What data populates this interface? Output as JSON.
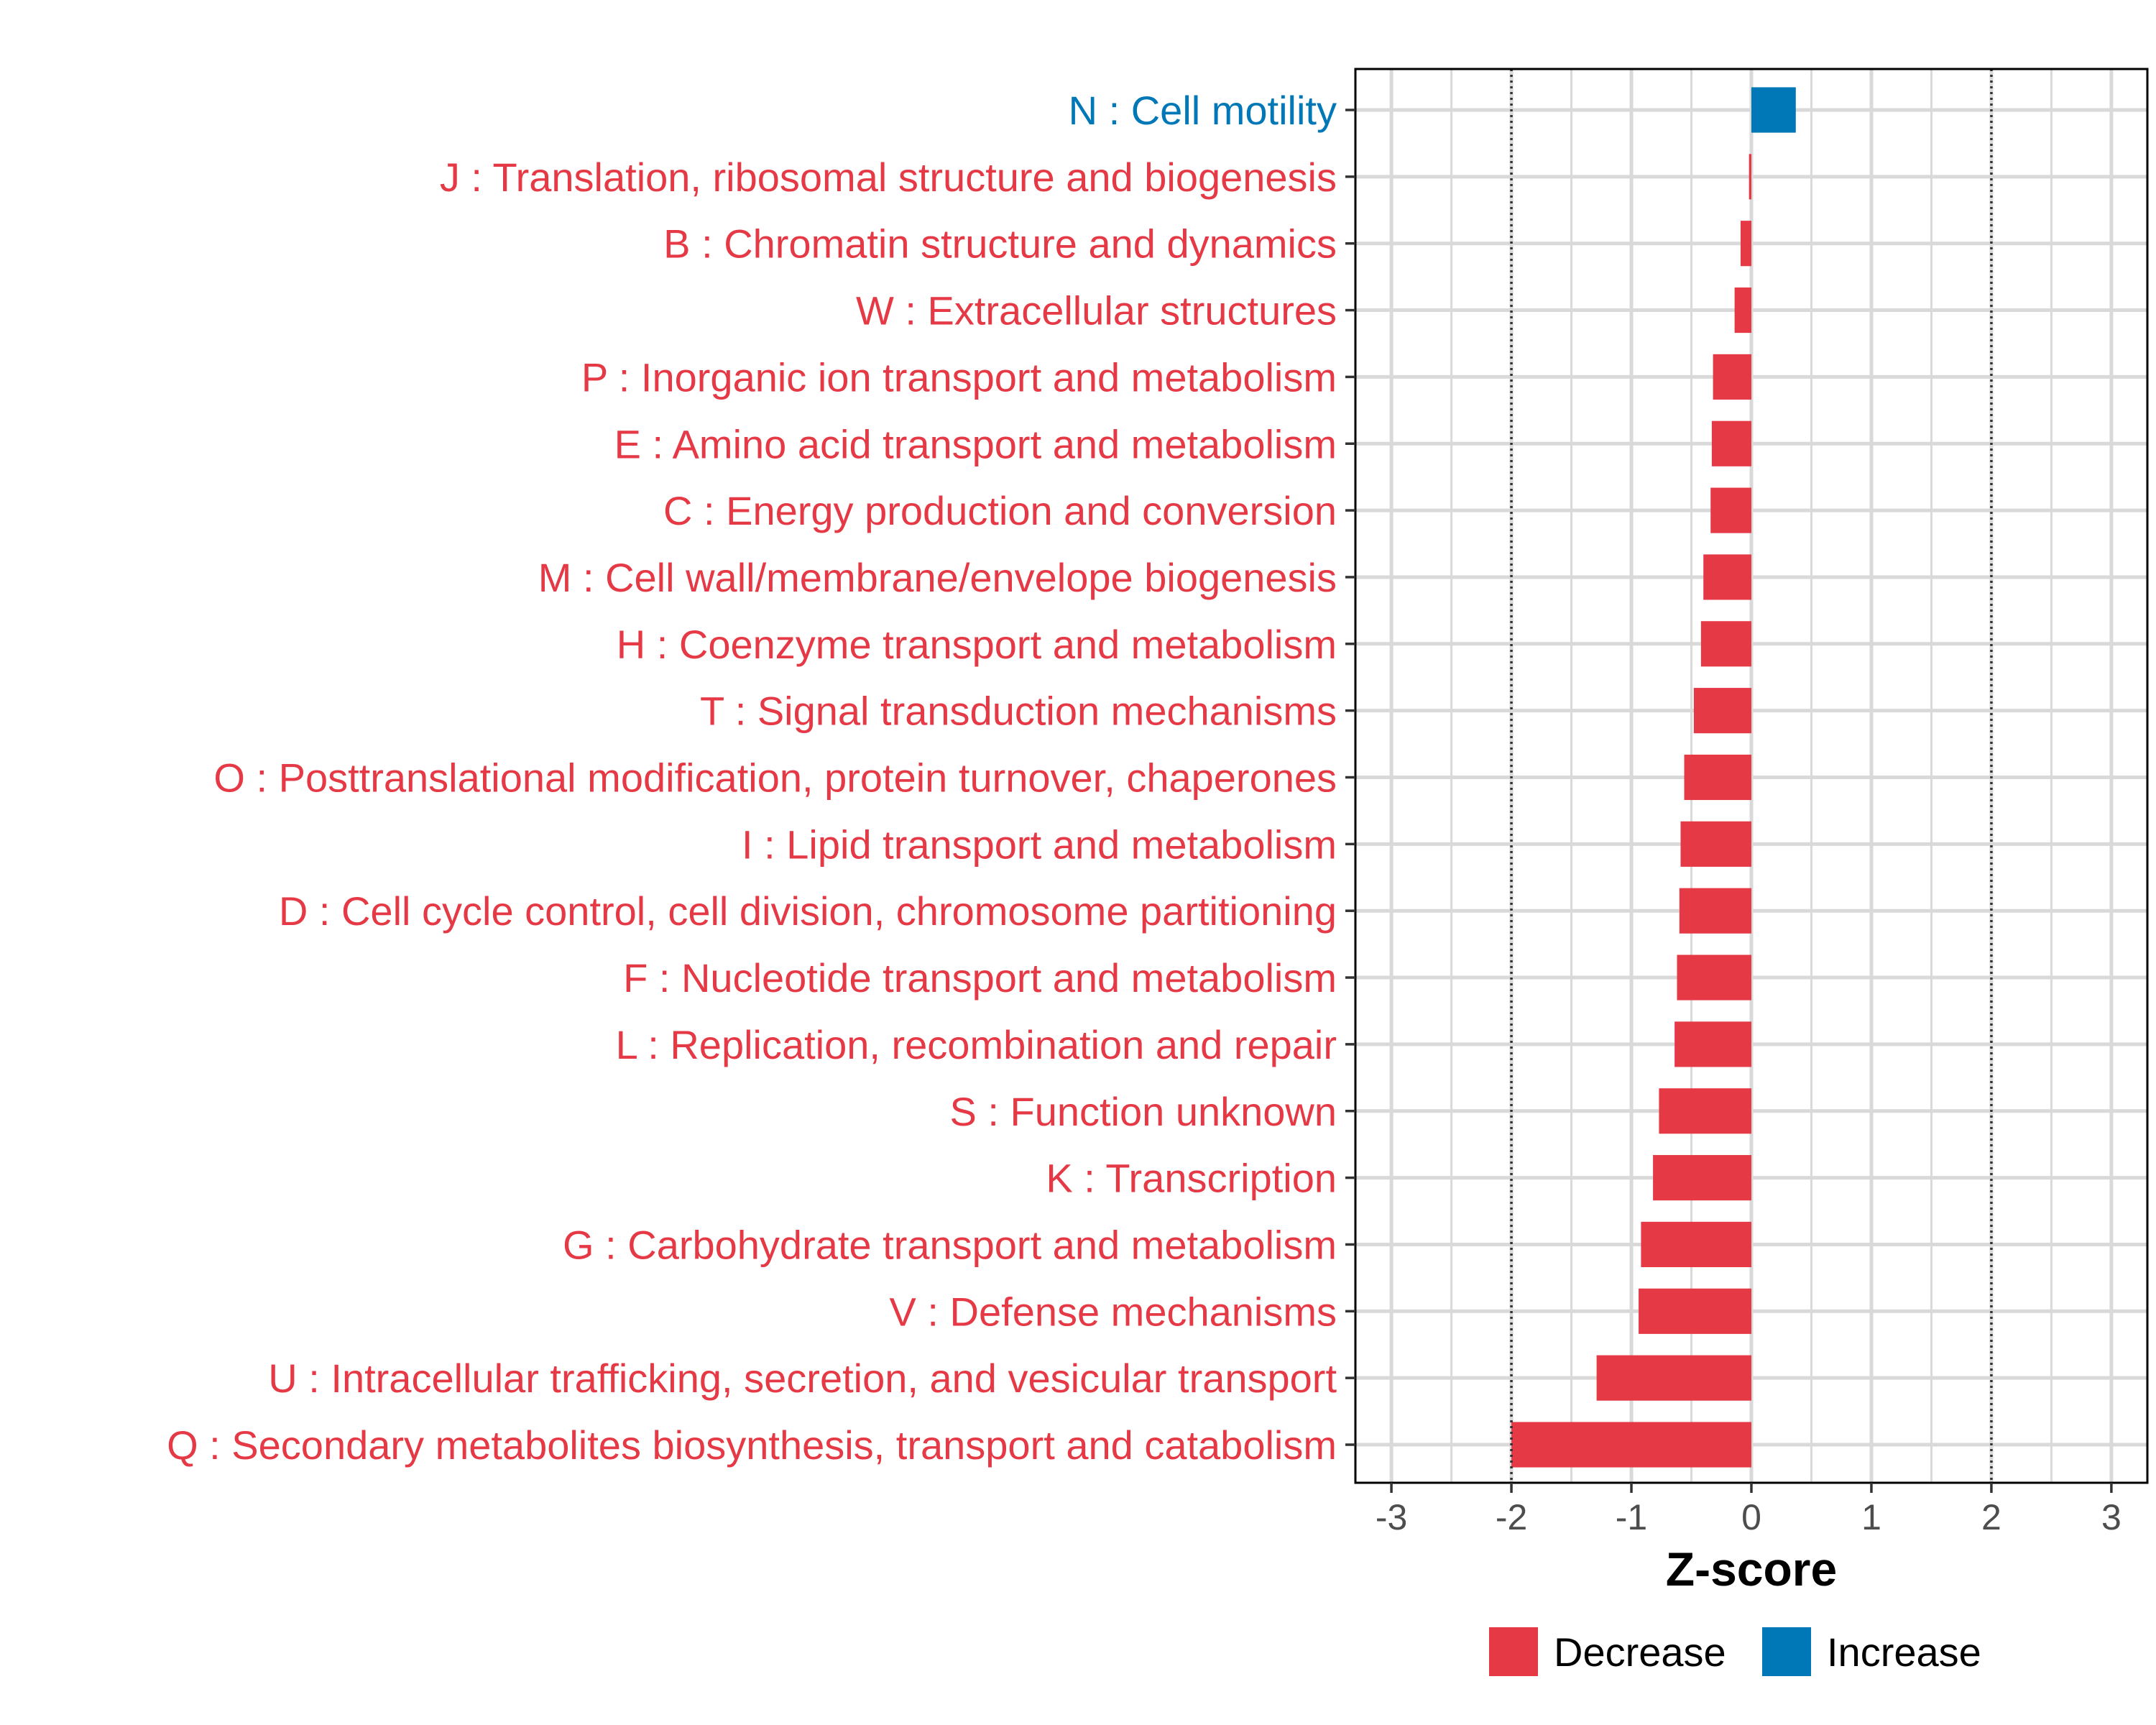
{
  "chart_data": {
    "type": "bar",
    "orientation": "horizontal",
    "title": "",
    "xlabel": "Z-score",
    "ylabel": "",
    "xlim": [
      -3.3,
      3.3
    ],
    "xticks": [
      -3,
      -2,
      -1,
      0,
      1,
      2,
      3
    ],
    "threshold_lines": [
      -2,
      2
    ],
    "grid": true,
    "legend_position": "bottom",
    "colors": {
      "Decrease": "#E63946",
      "Increase": "#0077B6"
    },
    "legend": [
      "Decrease",
      "Increase"
    ],
    "categories": [
      "N : Cell motility",
      "J : Translation, ribosomal structure and biogenesis",
      "B : Chromatin structure and dynamics",
      "W : Extracellular structures",
      "P : Inorganic ion transport and metabolism",
      "E : Amino acid transport and metabolism",
      "C : Energy production and conversion",
      "M : Cell wall/membrane/envelope biogenesis",
      "H : Coenzyme transport and metabolism",
      "T : Signal transduction mechanisms",
      "O : Posttranslational modification, protein turnover, chaperones",
      "I : Lipid transport and metabolism",
      "D : Cell cycle control, cell division, chromosome partitioning",
      "F : Nucleotide transport and metabolism",
      "L : Replication, recombination and repair",
      "S : Function unknown",
      "K : Transcription",
      "G : Carbohydrate transport and metabolism",
      "V : Defense mechanisms",
      "U : Intracellular trafficking, secretion, and vesicular transport",
      "Q : Secondary metabolites biosynthesis, transport and catabolism"
    ],
    "values": [
      0.37,
      -0.02,
      -0.09,
      -0.14,
      -0.32,
      -0.33,
      -0.34,
      -0.4,
      -0.42,
      -0.48,
      -0.56,
      -0.59,
      -0.6,
      -0.62,
      -0.64,
      -0.77,
      -0.82,
      -0.92,
      -0.94,
      -1.29,
      -2.0
    ],
    "direction": [
      "Increase",
      "Decrease",
      "Decrease",
      "Decrease",
      "Decrease",
      "Decrease",
      "Decrease",
      "Decrease",
      "Decrease",
      "Decrease",
      "Decrease",
      "Decrease",
      "Decrease",
      "Decrease",
      "Decrease",
      "Decrease",
      "Decrease",
      "Decrease",
      "Decrease",
      "Decrease",
      "Decrease"
    ]
  }
}
